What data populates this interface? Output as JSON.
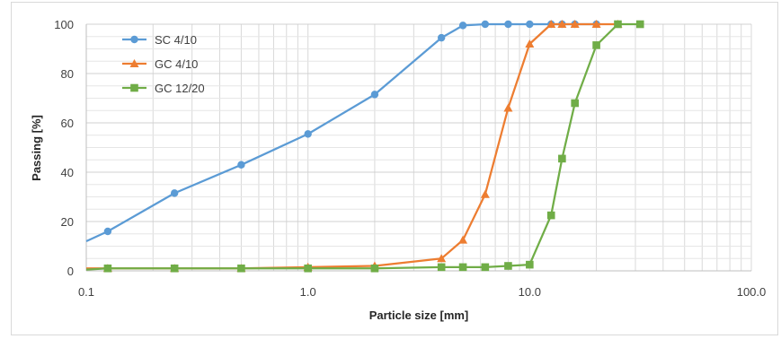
{
  "chart_data": {
    "type": "line",
    "xlabel": "Particle size [mm]",
    "ylabel": "Passing [%]",
    "x_scale": "log",
    "xlim": [
      0.1,
      100
    ],
    "ylim": [
      0,
      100
    ],
    "grid": true,
    "legend_position": "top-left",
    "x_tick_labels": [
      "0.1",
      "1.0",
      "10.0",
      "100.0"
    ],
    "y_tick_labels": [
      "0",
      "20",
      "40",
      "60",
      "80",
      "100"
    ],
    "series": [
      {
        "name": "SC 4/10",
        "color": "#5b9bd5",
        "marker": "circle",
        "x": [
          0.1,
          0.125,
          0.25,
          0.5,
          1.0,
          2.0,
          4.0,
          5.0,
          6.3,
          8.0,
          10.0,
          12.5,
          14.0,
          16.0,
          20.0
        ],
        "y": [
          12,
          16,
          31.5,
          43,
          55.5,
          71.5,
          94.5,
          99.5,
          100,
          100,
          100,
          100,
          100,
          100,
          100
        ],
        "markers_from_index": 1
      },
      {
        "name": "GC 4/10",
        "color": "#ed7d31",
        "marker": "triangle",
        "x": [
          0.1,
          0.125,
          0.25,
          0.5,
          1.0,
          2.0,
          4.0,
          5.0,
          6.3,
          8.0,
          10.0,
          12.5,
          14.0,
          16.0,
          20.0,
          25.0
        ],
        "y": [
          1,
          1,
          1,
          1,
          1.5,
          2,
          5,
          12.5,
          31,
          66,
          92,
          100,
          100,
          100,
          100,
          100
        ],
        "markers_from_index": 1
      },
      {
        "name": "GC 12/20",
        "color": "#70ad47",
        "marker": "square",
        "x": [
          0.1,
          0.125,
          0.25,
          0.5,
          1.0,
          2.0,
          4.0,
          5.0,
          6.3,
          8.0,
          10.0,
          12.5,
          14.0,
          16.0,
          20.0,
          25.0,
          31.5
        ],
        "y": [
          0.5,
          1,
          1,
          1,
          1,
          1,
          1.5,
          1.5,
          1.5,
          2,
          2.5,
          22.5,
          45.5,
          68,
          91.5,
          100,
          100
        ],
        "markers_from_index": 1
      }
    ]
  }
}
